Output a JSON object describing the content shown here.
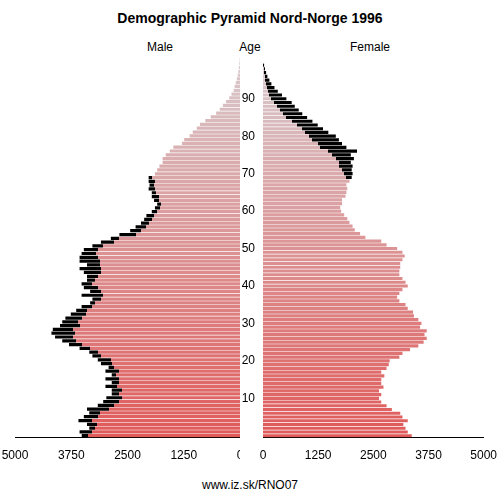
{
  "chart_data": {
    "type": "bar",
    "orientation": "horizontal",
    "title": "Demographic Pyramid Nord-Norge 1996",
    "ylabel": "Age",
    "annotations": [
      "www.iz.sk/RNO07"
    ],
    "grid": false,
    "categories": [
      null,
      null,
      null,
      null,
      null,
      null,
      null,
      null,
      null,
      null,
      "10",
      null,
      null,
      null,
      null,
      null,
      null,
      null,
      null,
      null,
      "20",
      null,
      null,
      null,
      null,
      null,
      null,
      null,
      null,
      null,
      "30",
      null,
      null,
      null,
      null,
      null,
      null,
      null,
      null,
      null,
      "40",
      null,
      null,
      null,
      null,
      null,
      null,
      null,
      null,
      null,
      "50",
      null,
      null,
      null,
      null,
      null,
      null,
      null,
      null,
      null,
      "60",
      null,
      null,
      null,
      null,
      null,
      null,
      null,
      null,
      null,
      "70",
      null,
      null,
      null,
      null,
      null,
      null,
      null,
      null,
      null,
      "80",
      null,
      null,
      null,
      null,
      null,
      null,
      null,
      null,
      null,
      "90",
      null,
      null,
      null,
      null,
      null,
      null,
      null,
      null,
      null
    ],
    "series": [
      {
        "name": "Male",
        "color": "#e05a5a",
        "values": [
          3517,
          3565,
          3350,
          3400,
          3590,
          3470,
          3350,
          3400,
          3160,
          3040,
          2970,
          2850,
          2850,
          2990,
          2850,
          2990,
          2850,
          2990,
          2920,
          3090,
          3160,
          3280,
          3350,
          3565,
          3800,
          3950,
          4110,
          4190,
          4160,
          4000,
          3950,
          3880,
          3760,
          3640,
          3520,
          3330,
          3280,
          3520,
          3330,
          3470,
          3520,
          3400,
          3400,
          3470,
          3565,
          3400,
          3565,
          3565,
          3520,
          3470,
          3280,
          3090,
          2870,
          2680,
          2440,
          2320,
          2200,
          2130,
          2080,
          1960,
          1890,
          1840,
          1910,
          1960,
          1960,
          2030,
          2010,
          2030,
          2030,
          1890,
          1840,
          1790,
          1720,
          1720,
          1650,
          1560,
          1480,
          1290,
          1240,
          1120,
          1050,
          960,
          890,
          770,
          650,
          530,
          450,
          380,
          310,
          240,
          190,
          140,
          120,
          95,
          70,
          50,
          35,
          25,
          15,
          8
        ]
      },
      {
        "name": "Female",
        "color": "#e05a5a",
        "values": [
          3370,
          3280,
          3230,
          3180,
          3280,
          3160,
          3110,
          2920,
          2800,
          2680,
          2630,
          2680,
          2630,
          2730,
          2680,
          2680,
          2750,
          2680,
          2800,
          2850,
          2870,
          3090,
          3160,
          3330,
          3520,
          3640,
          3710,
          3660,
          3710,
          3560,
          3590,
          3520,
          3420,
          3400,
          3280,
          3230,
          3090,
          3040,
          3090,
          3160,
          3280,
          3230,
          3160,
          3090,
          3090,
          3110,
          3110,
          3160,
          3210,
          3160,
          3040,
          2800,
          2680,
          2320,
          2200,
          2080,
          2030,
          1960,
          1910,
          1840,
          1770,
          1750,
          1790,
          1790,
          1870,
          1890,
          1910,
          1890,
          1960,
          2010,
          2030,
          2010,
          2030,
          1990,
          2060,
          1990,
          2130,
          1890,
          1790,
          1720,
          1650,
          1480,
          1360,
          1240,
          1120,
          1000,
          890,
          810,
          720,
          650,
          530,
          430,
          335,
          260,
          190,
          145,
          100,
          70,
          45,
          25
        ]
      }
    ],
    "xlim": [
      0,
      5000
    ],
    "xticks": [
      0,
      1250,
      2500,
      3750,
      5000
    ]
  }
}
